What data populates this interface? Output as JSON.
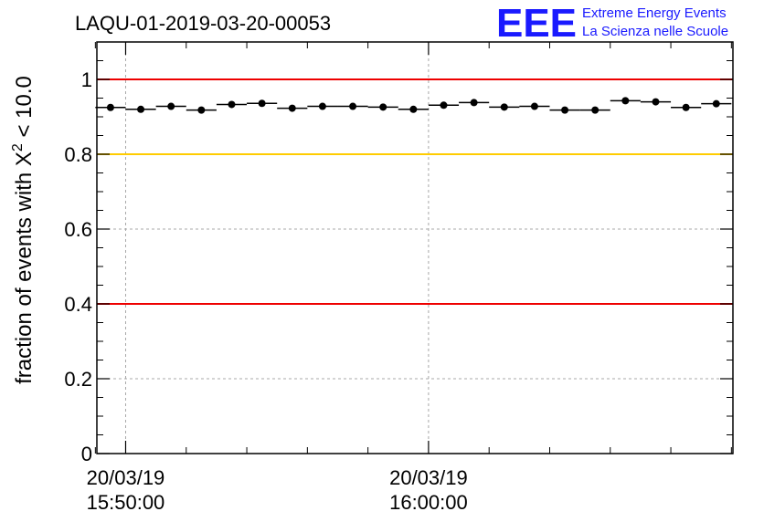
{
  "header": {
    "title": "LAQU-01-2019-03-20-00053",
    "logo": {
      "letters": "EEE",
      "line1": "Extreme Energy Events",
      "line2": "La Scienza nelle Scuole",
      "color": "#1a1aff"
    }
  },
  "chart_data": {
    "type": "scatter",
    "title": "LAQU-01-2019-03-20-00053",
    "ylabel": "fraction of events with χ² < 10.0",
    "ylabel_parts": {
      "pre": "fraction of events with Χ",
      "sup": "2",
      "post": " < 10.0"
    },
    "xlabel": "",
    "ylim": [
      0,
      1.1
    ],
    "yticks": [
      0,
      0.2,
      0.4,
      0.6,
      0.8,
      1
    ],
    "ytick_labels": [
      "0",
      "0.2",
      "0.4",
      "0.6",
      "0.8",
      "1"
    ],
    "xlim_minutes": [
      -0.95,
      20.05
    ],
    "xtick_labels": [
      {
        "minute": 0,
        "date": "20/03/19",
        "time": "15:50:00"
      },
      {
        "minute": 10,
        "date": "20/03/19",
        "time": "16:00:00"
      }
    ],
    "minor_xticks_minutes": [
      -1,
      0,
      2,
      4,
      6,
      8,
      10,
      12,
      14,
      16,
      18,
      20
    ],
    "grid": true,
    "reference_lines": [
      {
        "y": 1.0,
        "color": "#ee0000"
      },
      {
        "y": 0.8,
        "color": "#ffcc00"
      },
      {
        "y": 0.4,
        "color": "#ee0000"
      }
    ],
    "bin_width_minutes": 1,
    "series": [
      {
        "name": "fraction",
        "x_minutes": [
          -0.5,
          0.5,
          1.5,
          2.5,
          3.5,
          4.5,
          5.5,
          6.5,
          7.5,
          8.5,
          9.5,
          10.5,
          11.5,
          12.5,
          13.5,
          14.5,
          15.5,
          16.5,
          17.5,
          18.5,
          19.5
        ],
        "values": [
          0.925,
          0.92,
          0.928,
          0.918,
          0.933,
          0.936,
          0.923,
          0.928,
          0.928,
          0.926,
          0.92,
          0.931,
          0.938,
          0.926,
          0.928,
          0.918,
          0.918,
          0.943,
          0.94,
          0.925,
          0.935
        ]
      }
    ]
  }
}
